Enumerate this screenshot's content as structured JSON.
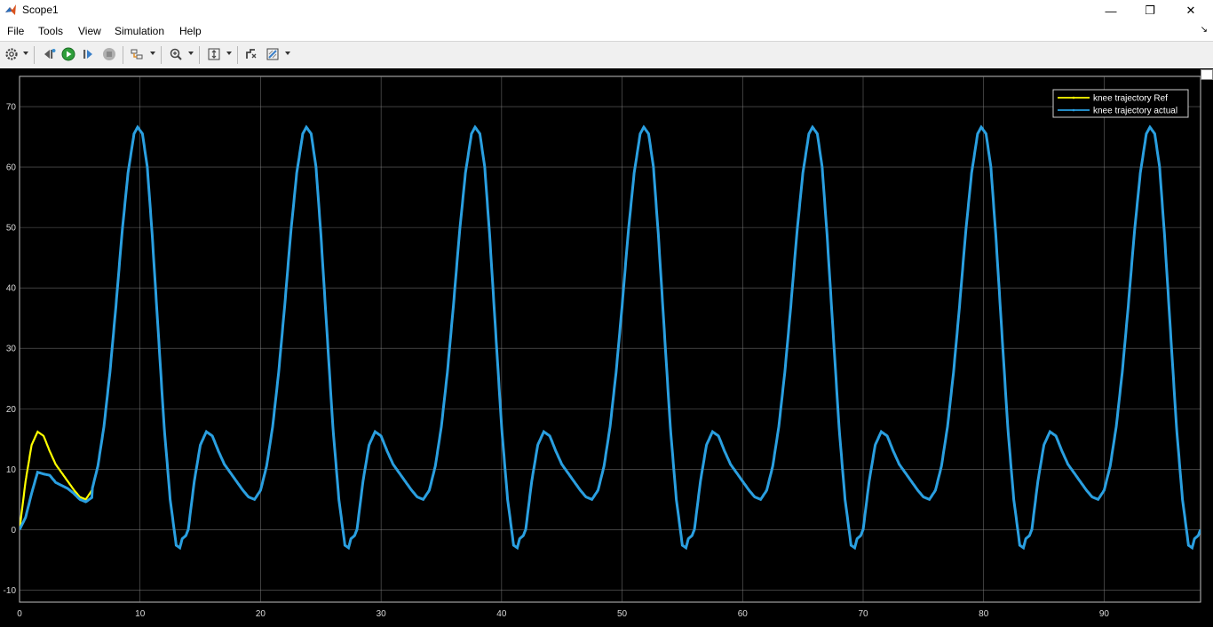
{
  "window": {
    "title": "Scope1",
    "minimize_glyph": "—",
    "maximize_glyph": "❐",
    "close_glyph": "✕"
  },
  "menu": {
    "items": [
      "File",
      "Tools",
      "View",
      "Simulation",
      "Help"
    ],
    "overflow_glyph": "↘"
  },
  "toolbar": {
    "buttons": [
      {
        "name": "settings",
        "icon": "gear-icon",
        "has_dropdown": true
      },
      {
        "name": "step-back",
        "icon": "step-back-icon",
        "has_dropdown": false
      },
      {
        "name": "run",
        "icon": "run-icon",
        "has_dropdown": false
      },
      {
        "name": "step-forward",
        "icon": "step-forward-icon",
        "has_dropdown": false
      },
      {
        "name": "stop",
        "icon": "stop-icon",
        "has_dropdown": false
      },
      {
        "name": "highlight-block",
        "icon": "highlight-block-icon",
        "has_dropdown": true
      },
      {
        "name": "zoom",
        "icon": "zoom-in-icon",
        "has_dropdown": true
      },
      {
        "name": "scale-axes",
        "icon": "scale-axes-icon",
        "has_dropdown": true
      },
      {
        "name": "signal-select",
        "icon": "signal-select-icon",
        "has_dropdown": false
      },
      {
        "name": "style",
        "icon": "style-icon",
        "has_dropdown": true
      }
    ]
  },
  "colors": {
    "plot_background": "#000000",
    "grid": "#8a8a8a",
    "ref_line": "#ffff00",
    "actual_line": "#2a9fe0"
  },
  "chart_data": {
    "type": "line",
    "xlim": [
      0,
      98
    ],
    "ylim": [
      -12,
      75
    ],
    "x_ticks": [
      0,
      10,
      20,
      30,
      40,
      50,
      60,
      70,
      80,
      90
    ],
    "y_ticks": [
      -10,
      0,
      10,
      20,
      30,
      40,
      50,
      60,
      70
    ],
    "grid": true,
    "legend_position": "top-right",
    "period": 14,
    "cycle_profile": {
      "t": [
        0,
        0.5,
        1.0,
        1.5,
        2.0,
        2.5,
        3.0,
        3.5,
        4.0,
        4.5,
        5.0,
        5.5,
        6.0,
        6.5,
        7.0,
        7.5,
        8.0,
        8.5,
        9.0,
        9.5,
        9.8,
        10.2,
        10.6,
        11.0,
        11.5,
        12.0,
        12.5,
        13.0,
        13.3,
        13.5,
        13.8,
        14.0
      ],
      "y": [
        0,
        8,
        14,
        16.2,
        15.5,
        13,
        10.8,
        9.4,
        8.0,
        6.6,
        5.4,
        5.0,
        6.5,
        10.5,
        17,
        26,
        37,
        49,
        59,
        65.5,
        66.6,
        65.5,
        60,
        49,
        33,
        17,
        5,
        -2.6,
        -3.0,
        -1.5,
        -1.0,
        0
      ]
    },
    "transient_actual": {
      "x": [
        0,
        0.5,
        1.0,
        1.5,
        2.0,
        2.5,
        3.0,
        3.5,
        4.0,
        4.5,
        5.0,
        5.5,
        6.0
      ],
      "y": [
        0,
        2,
        6,
        9.5,
        9.2,
        9.0,
        7.8,
        7.3,
        6.8,
        6.0,
        5.0,
        4.6,
        5.3
      ]
    },
    "series": [
      {
        "name": "knee trajectory Ref",
        "color": "#ffff00"
      },
      {
        "name": "knee trajectory actual",
        "color": "#2a9fe0"
      }
    ]
  }
}
